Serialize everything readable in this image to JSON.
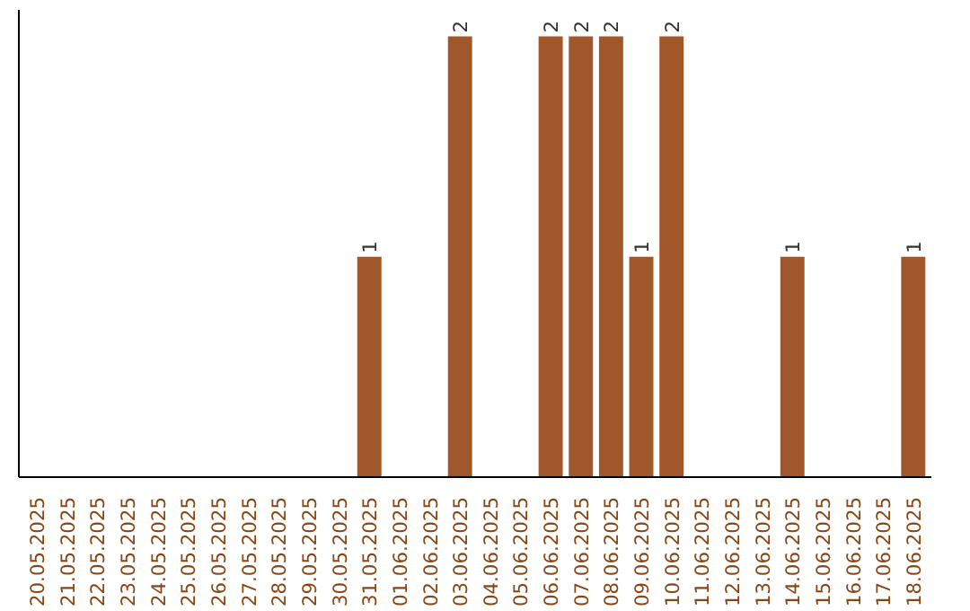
{
  "chart_data": {
    "type": "bar",
    "categories": [
      "20.05.2025",
      "21.05.2025",
      "22.05.2025",
      "23.05.2025",
      "24.05.2025",
      "25.05.2025",
      "26.05.2025",
      "27.05.2025",
      "28.05.2025",
      "29.05.2025",
      "30.05.2025",
      "31.05.2025",
      "01.06.2025",
      "02.06.2025",
      "03.06.2025",
      "04.06.2025",
      "05.06.2025",
      "06.06.2025",
      "07.06.2025",
      "08.06.2025",
      "09.06.2025",
      "10.06.2025",
      "11.06.2025",
      "12.06.2025",
      "13.06.2025",
      "14.06.2025",
      "15.06.2025",
      "16.06.2025",
      "17.06.2025",
      "18.06.2025"
    ],
    "values": [
      0,
      0,
      0,
      0,
      0,
      0,
      0,
      0,
      0,
      0,
      0,
      1,
      0,
      0,
      2,
      0,
      0,
      2,
      2,
      2,
      1,
      2,
      0,
      0,
      0,
      1,
      0,
      0,
      0,
      1
    ],
    "value_labels": [
      null,
      null,
      null,
      null,
      null,
      null,
      null,
      null,
      null,
      null,
      null,
      "1",
      null,
      null,
      "2",
      null,
      null,
      "2",
      "2",
      "2",
      "1",
      "2",
      null,
      null,
      null,
      "1",
      null,
      null,
      null,
      "1"
    ],
    "color": "#a0582a",
    "tick_labels": "x",
    "grid": false
  }
}
